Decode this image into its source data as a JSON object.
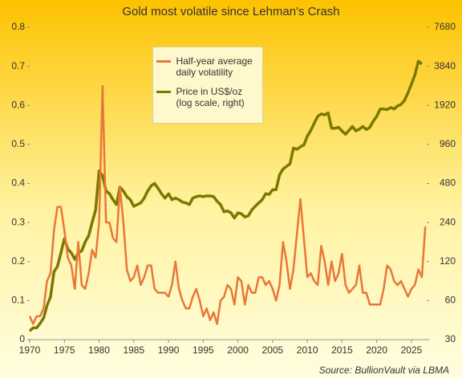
{
  "chart_data": {
    "type": "line",
    "title": "Gold most volatile  since Lehman's  Crash",
    "source": "Source: BullionVault via  LBMA",
    "legend": "upper center",
    "y2log": true,
    "grid": false,
    "xlim": [
      1970,
      2027.2
    ],
    "xticks": [
      1970,
      1975,
      1980,
      1985,
      1990,
      1995,
      2000,
      2005,
      2010,
      2015,
      2020,
      2025
    ],
    "ylim": [
      0,
      0.8
    ],
    "yticks": [
      0,
      0.1,
      0.2,
      0.3,
      0.4,
      0.5,
      0.6,
      0.7,
      0.8
    ],
    "y2lim": [
      30,
      7680
    ],
    "y2ticks": [
      30,
      60,
      120,
      240,
      480,
      960,
      1920,
      3840,
      7680
    ],
    "x": [
      1970,
      1970.5,
      1971,
      1971.5,
      1972,
      1972.5,
      1973,
      1973.5,
      1974,
      1974.5,
      1975,
      1975.5,
      1976,
      1976.5,
      1977,
      1977.5,
      1978,
      1978.5,
      1979,
      1979.5,
      1980,
      1980.5,
      1981,
      1981.5,
      1982,
      1982.5,
      1983,
      1983.5,
      1984,
      1984.5,
      1985,
      1985.5,
      1986,
      1986.5,
      1987,
      1987.5,
      1988,
      1988.5,
      1989,
      1989.5,
      1990,
      1990.5,
      1991,
      1991.5,
      1992,
      1992.5,
      1993,
      1993.5,
      1994,
      1994.5,
      1995,
      1995.5,
      1996,
      1996.5,
      1997,
      1997.5,
      1998,
      1998.5,
      1999,
      1999.5,
      2000,
      2000.5,
      2001,
      2001.5,
      2002,
      2002.5,
      2003,
      2003.5,
      2004,
      2004.5,
      2005,
      2005.5,
      2006,
      2006.5,
      2007,
      2007.5,
      2008,
      2008.5,
      2009,
      2009.5,
      2010,
      2010.5,
      2011,
      2011.5,
      2012,
      2012.5,
      2013,
      2013.5,
      2014,
      2014.5,
      2015,
      2015.5,
      2016,
      2016.5,
      2017,
      2017.5,
      2018,
      2018.5,
      2019,
      2019.5,
      2020,
      2020.5,
      2021,
      2021.5,
      2022,
      2022.5,
      2023,
      2023.5,
      2024,
      2024.5,
      2025,
      2025.5,
      2026,
      2026.5,
      2027
    ],
    "series": [
      {
        "name": "Half-year average daily volatility",
        "color": "#e8773a",
        "values": [
          0.06,
          0.04,
          0.06,
          0.06,
          0.08,
          0.15,
          0.17,
          0.28,
          0.34,
          0.34,
          0.28,
          0.21,
          0.19,
          0.13,
          0.25,
          0.14,
          0.13,
          0.17,
          0.23,
          0.21,
          0.3,
          0.65,
          0.3,
          0.3,
          0.26,
          0.25,
          0.39,
          0.3,
          0.18,
          0.15,
          0.16,
          0.19,
          0.14,
          0.16,
          0.19,
          0.19,
          0.13,
          0.12,
          0.12,
          0.12,
          0.11,
          0.14,
          0.2,
          0.13,
          0.1,
          0.08,
          0.08,
          0.11,
          0.13,
          0.1,
          0.06,
          0.08,
          0.05,
          0.07,
          0.04,
          0.1,
          0.11,
          0.14,
          0.13,
          0.09,
          0.16,
          0.15,
          0.09,
          0.14,
          0.12,
          0.12,
          0.16,
          0.16,
          0.14,
          0.15,
          0.13,
          0.1,
          0.14,
          0.25,
          0.2,
          0.13,
          0.18,
          0.27,
          0.36,
          0.26,
          0.16,
          0.17,
          0.15,
          0.14,
          0.24,
          0.2,
          0.14,
          0.2,
          0.15,
          0.17,
          0.22,
          0.14,
          0.12,
          0.13,
          0.14,
          0.19,
          0.12,
          0.12,
          0.09,
          0.09,
          0.09,
          0.09,
          0.13,
          0.19,
          0.18,
          0.15,
          0.14,
          0.15,
          0.13,
          0.11,
          0.13,
          0.14,
          0.18,
          0.16,
          0.29
        ]
      },
      {
        "name": "Price in US$/oz (log scale, right)",
        "color": "#7b7800",
        "axis": "y2",
        "values": [
          35,
          37,
          37,
          40,
          44,
          55,
          64,
          100,
          110,
          140,
          180,
          150,
          140,
          125,
          140,
          145,
          170,
          190,
          240,
          300,
          600,
          550,
          420,
          400,
          360,
          330,
          450,
          420,
          380,
          360,
          320,
          330,
          340,
          370,
          420,
          460,
          480,
          440,
          400,
          370,
          400,
          360,
          370,
          360,
          345,
          340,
          330,
          370,
          380,
          385,
          380,
          385,
          385,
          380,
          350,
          330,
          290,
          295,
          285,
          260,
          285,
          280,
          265,
          270,
          300,
          320,
          340,
          360,
          400,
          395,
          430,
          430,
          560,
          620,
          650,
          680,
          900,
          880,
          920,
          950,
          1110,
          1230,
          1400,
          1580,
          1650,
          1620,
          1680,
          1280,
          1280,
          1300,
          1220,
          1150,
          1230,
          1320,
          1220,
          1260,
          1320,
          1250,
          1300,
          1450,
          1580,
          1800,
          1800,
          1780,
          1850,
          1800,
          1900,
          1950,
          2100,
          2400,
          2800,
          3300,
          4200,
          4000,
          null
        ]
      }
    ]
  }
}
